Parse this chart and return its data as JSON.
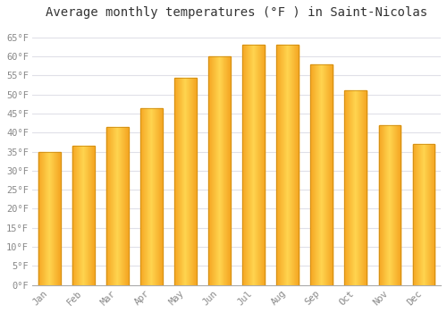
{
  "title": "Average monthly temperatures (°F ) in Saint-Nicolas",
  "months": [
    "Jan",
    "Feb",
    "Mar",
    "Apr",
    "May",
    "Jun",
    "Jul",
    "Aug",
    "Sep",
    "Oct",
    "Nov",
    "Dec"
  ],
  "values": [
    35,
    36.5,
    41.5,
    46.5,
    54.5,
    60,
    63,
    63,
    58,
    51,
    42,
    37
  ],
  "bar_color_center": "#FFD04D",
  "bar_color_edge": "#F5A623",
  "background_color": "#FFFFFF",
  "grid_color": "#E0E0E8",
  "yticks": [
    0,
    5,
    10,
    15,
    20,
    25,
    30,
    35,
    40,
    45,
    50,
    55,
    60,
    65
  ],
  "ytick_labels": [
    "0°F",
    "5°F",
    "10°F",
    "15°F",
    "20°F",
    "25°F",
    "30°F",
    "35°F",
    "40°F",
    "45°F",
    "50°F",
    "55°F",
    "60°F",
    "65°F"
  ],
  "ylim": [
    0,
    68
  ],
  "title_fontsize": 10,
  "tick_fontsize": 7.5,
  "tick_color": "#888888",
  "spine_color": "#AAAAAA",
  "font_family": "monospace"
}
